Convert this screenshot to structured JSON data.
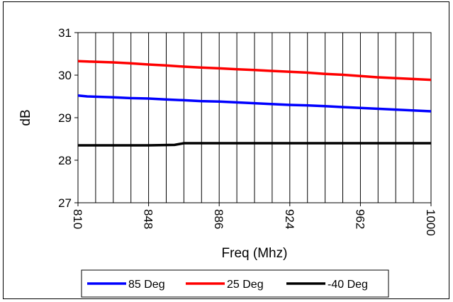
{
  "chart_data": {
    "type": "line",
    "xlabel": "Freq (Mhz)",
    "ylabel": "dB",
    "xlim": [
      810,
      1000
    ],
    "ylim": [
      27,
      31
    ],
    "x_ticks": [
      "810",
      "848",
      "886",
      "924",
      "962",
      "1000"
    ],
    "y_ticks": [
      "27",
      "28",
      "29",
      "30",
      "31"
    ],
    "grid": "vertical",
    "legend_position": "bottom",
    "series": [
      {
        "name": "85 Deg",
        "color": "#0000ff",
        "x": [
          810,
          810,
          1000
        ],
        "y": [
          29.52,
          29.52,
          29.15
        ],
        "points": [
          [
            810,
            29.52
          ],
          [
            815,
            29.5
          ],
          [
            829,
            29.48
          ],
          [
            838,
            29.46
          ],
          [
            848,
            29.45
          ],
          [
            857,
            29.43
          ],
          [
            867,
            29.41
          ],
          [
            876,
            29.39
          ],
          [
            886,
            29.38
          ],
          [
            895,
            29.36
          ],
          [
            905,
            29.34
          ],
          [
            914,
            29.32
          ],
          [
            924,
            29.3
          ],
          [
            933,
            29.29
          ],
          [
            943,
            29.27
          ],
          [
            952,
            29.25
          ],
          [
            962,
            29.23
          ],
          [
            971,
            29.21
          ],
          [
            981,
            29.19
          ],
          [
            990,
            29.17
          ],
          [
            1000,
            29.15
          ]
        ]
      },
      {
        "name": "25 Deg",
        "color": "#ff0000",
        "points": [
          [
            810,
            30.33
          ],
          [
            815,
            30.32
          ],
          [
            829,
            30.3
          ],
          [
            838,
            30.28
          ],
          [
            848,
            30.25
          ],
          [
            857,
            30.23
          ],
          [
            867,
            30.2
          ],
          [
            876,
            30.18
          ],
          [
            886,
            30.16
          ],
          [
            895,
            30.14
          ],
          [
            905,
            30.12
          ],
          [
            914,
            30.1
          ],
          [
            924,
            30.08
          ],
          [
            933,
            30.06
          ],
          [
            943,
            30.03
          ],
          [
            952,
            30.01
          ],
          [
            962,
            29.98
          ],
          [
            971,
            29.95
          ],
          [
            981,
            29.93
          ],
          [
            990,
            29.91
          ],
          [
            1000,
            29.89
          ]
        ]
      },
      {
        "name": "-40 Deg",
        "color": "#000000",
        "points": [
          [
            810,
            28.35
          ],
          [
            829,
            28.35
          ],
          [
            848,
            28.35
          ],
          [
            862,
            28.36
          ],
          [
            867,
            28.4
          ],
          [
            886,
            28.4
          ],
          [
            905,
            28.4
          ],
          [
            924,
            28.4
          ],
          [
            943,
            28.4
          ],
          [
            962,
            28.4
          ],
          [
            981,
            28.4
          ],
          [
            1000,
            28.4
          ]
        ]
      }
    ]
  }
}
